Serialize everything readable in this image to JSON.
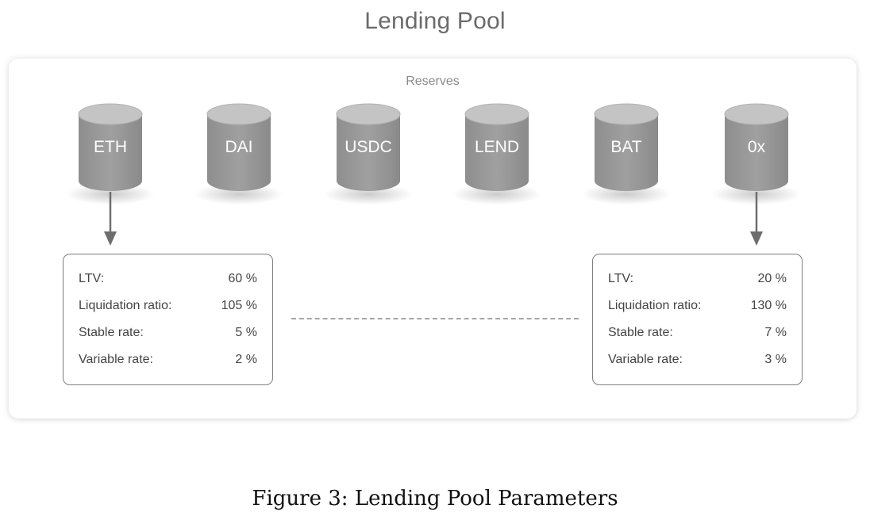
{
  "title": "Lending Pool",
  "reserves_label": "Reserves",
  "reserves": [
    "ETH",
    "DAI",
    "USDC",
    "LEND",
    "BAT",
    "0x"
  ],
  "colors": {
    "cylinder_body": "#9a9a9a",
    "cylinder_top": "#c6c6c6",
    "arrow": "#6e6e6e",
    "box_border": "#7d7d7d"
  },
  "left_params": {
    "rows": [
      {
        "label": "LTV:",
        "value": "60 %"
      },
      {
        "label": "Liquidation ratio:",
        "value": "105 %"
      },
      {
        "label": "Stable rate:",
        "value": "5 %"
      },
      {
        "label": "Variable rate:",
        "value": "2 %"
      }
    ]
  },
  "right_params": {
    "rows": [
      {
        "label": "LTV:",
        "value": "20 %"
      },
      {
        "label": "Liquidation ratio:",
        "value": "130 %"
      },
      {
        "label": "Stable rate:",
        "value": "7 %"
      },
      {
        "label": "Variable rate:",
        "value": "3 %"
      }
    ]
  },
  "caption": "Figure 3: Lending Pool Parameters"
}
